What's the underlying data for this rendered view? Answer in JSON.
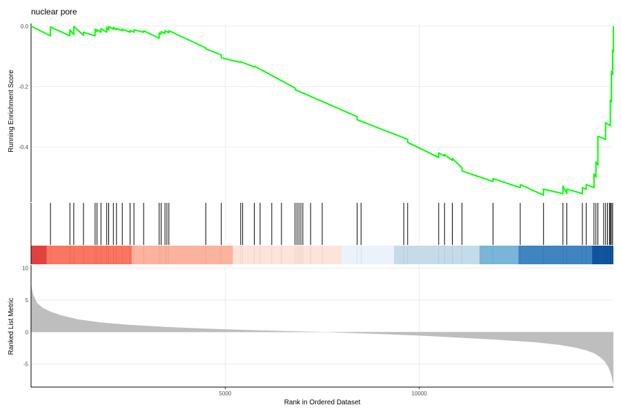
{
  "chart_data": {
    "type": "line",
    "title": "nuclear pore",
    "xlabel": "Rank in Ordered Dataset",
    "xlim": [
      0,
      15000
    ],
    "x_ticks": [
      {
        "value": 5000,
        "label": "5000"
      },
      {
        "value": 10000,
        "label": "10000"
      }
    ],
    "panels": {
      "running_score": {
        "ylabel": "Running Enrichment Score",
        "ylim": [
          -0.5833,
          0.009
        ],
        "y_ticks": [
          {
            "value": 0,
            "label": "0.0"
          },
          {
            "value": -0.2,
            "label": "-0.2"
          },
          {
            "value": -0.4,
            "label": "-0.4"
          }
        ],
        "color": "#00ff00",
        "series": [
          {
            "x": [
              0,
              500,
              500,
              1000,
              1000,
              1100,
              1100,
              1350,
              1350,
              1650,
              1650,
              1700,
              1700,
              1800,
              1800,
              1950,
              1950,
              2000,
              2000,
              2120,
              2120,
              2200,
              2200,
              2350,
              2350,
              2550,
              2550,
              2650,
              2650,
              2900,
              2900,
              3300,
              3300,
              3350,
              3350,
              3450,
              3450,
              3550,
              3550,
              4500,
              4500,
              4900,
              4900,
              5400,
              5400,
              5750,
              5750,
              6800,
              6800,
              8400,
              8400,
              9700,
              9700,
              10500,
              10500,
              10650,
              10650,
              10850,
              10850,
              11100,
              11100,
              11900,
              11900,
              12600,
              12600,
              13200,
              13200,
              13700,
              13700,
              13800,
              13800,
              14200,
              14200,
              14300,
              14300,
              14500,
              14500,
              14550,
              14550,
              14600,
              14600,
              14800,
              14800,
              14920,
              14920,
              14950,
              14950,
              14980,
              14980,
              15000,
              15000
            ],
            "y": [
              0,
              -0.032,
              -0.003,
              -0.032,
              -0.012,
              -0.028,
              -0.001,
              -0.03,
              -0.02,
              -0.032,
              -0.01,
              -0.018,
              -0.012,
              -0.02,
              -0.008,
              -0.02,
              -0.004,
              -0.012,
              -0.001,
              -0.01,
              -0.004,
              -0.012,
              -0.008,
              -0.015,
              -0.01,
              -0.02,
              -0.014,
              -0.02,
              -0.012,
              -0.02,
              -0.015,
              -0.04,
              -0.022,
              -0.026,
              -0.018,
              -0.024,
              -0.015,
              -0.022,
              -0.015,
              -0.072,
              -0.075,
              -0.095,
              -0.105,
              -0.12,
              -0.118,
              -0.135,
              -0.132,
              -0.205,
              -0.21,
              -0.3,
              -0.31,
              -0.375,
              -0.385,
              -0.435,
              -0.42,
              -0.43,
              -0.425,
              -0.445,
              -0.438,
              -0.47,
              -0.48,
              -0.515,
              -0.505,
              -0.535,
              -0.525,
              -0.56,
              -0.54,
              -0.555,
              -0.53,
              -0.555,
              -0.54,
              -0.555,
              -0.535,
              -0.54,
              -0.525,
              -0.535,
              -0.49,
              -0.5,
              -0.45,
              -0.46,
              -0.365,
              -0.375,
              -0.32,
              -0.33,
              -0.245,
              -0.25,
              -0.15,
              -0.16,
              -0.08,
              -0.085,
              0
            ]
          }
        ]
      },
      "gene_hits": [
        500,
        1000,
        1100,
        1350,
        1650,
        1700,
        1800,
        1950,
        2000,
        2120,
        2200,
        2350,
        2550,
        2650,
        2900,
        3300,
        3350,
        3450,
        3500,
        3550,
        4500,
        4900,
        5400,
        5450,
        5750,
        5900,
        6200,
        6450,
        6800,
        6850,
        6900,
        6950,
        7000,
        7200,
        7500,
        8400,
        8500,
        9600,
        9700,
        10500,
        10650,
        10850,
        11100,
        11900,
        12600,
        13200,
        13700,
        13800,
        14200,
        14300,
        14500,
        14550,
        14600,
        14750,
        14800,
        14850,
        14900,
        14920,
        14950,
        14980
      ],
      "rank_colorbar": [
        {
          "from": 0,
          "to": 400,
          "color": "#e34140"
        },
        {
          "from": 400,
          "to": 2600,
          "color": "#fa7660"
        },
        {
          "from": 2600,
          "to": 5200,
          "color": "#fcb39d"
        },
        {
          "from": 5200,
          "to": 8000,
          "color": "#fde3da"
        },
        {
          "from": 8000,
          "to": 9350,
          "color": "#ebf2fb"
        },
        {
          "from": 9350,
          "to": 11550,
          "color": "#c4dbea"
        },
        {
          "from": 11550,
          "to": 12550,
          "color": "#78b5d9"
        },
        {
          "from": 12550,
          "to": 14450,
          "color": "#3e85c2"
        },
        {
          "from": 14450,
          "to": 15000,
          "color": "#1056a0"
        }
      ],
      "ranked_metric": {
        "ylabel": "Ranked List Metric",
        "ylim": [
          -8.6,
          10.5
        ],
        "y_ticks": [
          {
            "value": 10,
            "label": "10"
          },
          {
            "value": 5,
            "label": "5"
          },
          {
            "value": 0,
            "label": "0"
          },
          {
            "value": -5,
            "label": "-5"
          }
        ],
        "fill_color": "#bebebe",
        "x": [
          0,
          50,
          150,
          300,
          500,
          800,
          1200,
          1800,
          2500,
          3500,
          4500,
          5500,
          6500,
          7200,
          7600,
          8000,
          9000,
          10000,
          11000,
          12000,
          13000,
          13600,
          14000,
          14300,
          14500,
          14650,
          14780,
          14880,
          14950,
          15000
        ],
        "y": [
          7.5,
          6.0,
          4.6,
          3.8,
          3.2,
          2.6,
          2.0,
          1.5,
          1.15,
          0.8,
          0.55,
          0.35,
          0.18,
          0.08,
          0.0,
          -0.1,
          -0.3,
          -0.55,
          -0.85,
          -1.2,
          -1.6,
          -2.0,
          -2.4,
          -2.85,
          -3.3,
          -3.9,
          -4.6,
          -5.6,
          -6.8,
          -8.4
        ]
      }
    }
  }
}
